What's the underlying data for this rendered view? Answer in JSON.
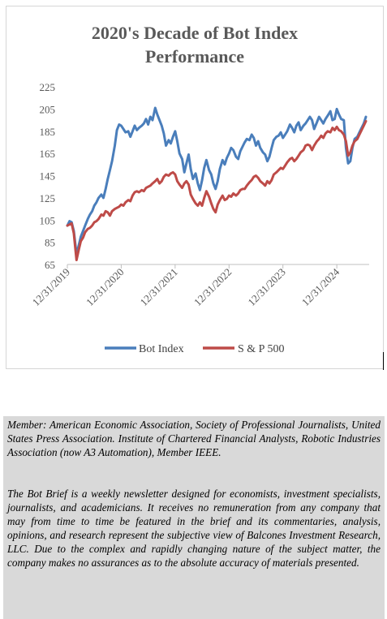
{
  "chart_data": {
    "type": "line",
    "title_lines": [
      "2020's Decade of Bot Index",
      "Performance"
    ],
    "xlabel": "",
    "ylabel": "",
    "ylim": [
      65,
      225
    ],
    "y_ticks": [
      "225",
      "205",
      "185",
      "165",
      "145",
      "125",
      "105",
      "85",
      "65"
    ],
    "x_ticks": [
      "12/31/2019",
      "12/31/2020",
      "12/31/2021",
      "12/31/2022",
      "12/31/2023",
      "12/31/2024"
    ],
    "xlim": [
      2020.0,
      2025.6
    ],
    "legend_position": "bottom",
    "series": [
      {
        "name": "Bot Index",
        "color": "#4a7ebb",
        "points": [
          [
            2020.0,
            100
          ],
          [
            2020.04,
            104
          ],
          [
            2020.08,
            103
          ],
          [
            2020.12,
            95
          ],
          [
            2020.17,
            74
          ],
          [
            2020.21,
            82
          ],
          [
            2020.25,
            90
          ],
          [
            2020.29,
            95
          ],
          [
            2020.33,
            100
          ],
          [
            2020.38,
            106
          ],
          [
            2020.42,
            110
          ],
          [
            2020.46,
            113
          ],
          [
            2020.5,
            118
          ],
          [
            2020.54,
            121
          ],
          [
            2020.58,
            125
          ],
          [
            2020.63,
            128
          ],
          [
            2020.67,
            125
          ],
          [
            2020.71,
            133
          ],
          [
            2020.75,
            142
          ],
          [
            2020.79,
            150
          ],
          [
            2020.83,
            158
          ],
          [
            2020.88,
            172
          ],
          [
            2020.92,
            186
          ],
          [
            2020.96,
            191
          ],
          [
            2021.0,
            190
          ],
          [
            2021.04,
            187
          ],
          [
            2021.08,
            184
          ],
          [
            2021.13,
            185
          ],
          [
            2021.17,
            180
          ],
          [
            2021.21,
            185
          ],
          [
            2021.25,
            190
          ],
          [
            2021.29,
            186
          ],
          [
            2021.33,
            188
          ],
          [
            2021.38,
            190
          ],
          [
            2021.42,
            192
          ],
          [
            2021.46,
            196
          ],
          [
            2021.5,
            191
          ],
          [
            2021.54,
            198
          ],
          [
            2021.58,
            195
          ],
          [
            2021.63,
            206
          ],
          [
            2021.67,
            200
          ],
          [
            2021.71,
            195
          ],
          [
            2021.75,
            190
          ],
          [
            2021.79,
            183
          ],
          [
            2021.83,
            172
          ],
          [
            2021.88,
            177
          ],
          [
            2021.92,
            174
          ],
          [
            2021.96,
            180
          ],
          [
            2022.0,
            185
          ],
          [
            2022.04,
            176
          ],
          [
            2022.08,
            165
          ],
          [
            2022.13,
            160
          ],
          [
            2022.17,
            148
          ],
          [
            2022.21,
            156
          ],
          [
            2022.25,
            164
          ],
          [
            2022.29,
            151
          ],
          [
            2022.33,
            142
          ],
          [
            2022.38,
            147
          ],
          [
            2022.42,
            138
          ],
          [
            2022.46,
            132
          ],
          [
            2022.5,
            141
          ],
          [
            2022.54,
            152
          ],
          [
            2022.58,
            159
          ],
          [
            2022.63,
            150
          ],
          [
            2022.67,
            146
          ],
          [
            2022.71,
            138
          ],
          [
            2022.75,
            133
          ],
          [
            2022.79,
            140
          ],
          [
            2022.83,
            151
          ],
          [
            2022.88,
            159
          ],
          [
            2022.92,
            155
          ],
          [
            2022.96,
            161
          ],
          [
            2023.0,
            165
          ],
          [
            2023.04,
            170
          ],
          [
            2023.08,
            168
          ],
          [
            2023.13,
            162
          ],
          [
            2023.17,
            160
          ],
          [
            2023.21,
            167
          ],
          [
            2023.25,
            171
          ],
          [
            2023.29,
            175
          ],
          [
            2023.33,
            178
          ],
          [
            2023.38,
            177
          ],
          [
            2023.42,
            182
          ],
          [
            2023.46,
            179
          ],
          [
            2023.5,
            172
          ],
          [
            2023.54,
            176
          ],
          [
            2023.58,
            170
          ],
          [
            2023.63,
            166
          ],
          [
            2023.67,
            164
          ],
          [
            2023.71,
            158
          ],
          [
            2023.75,
            162
          ],
          [
            2023.79,
            170
          ],
          [
            2023.83,
            177
          ],
          [
            2023.88,
            180
          ],
          [
            2023.92,
            181
          ],
          [
            2023.96,
            184
          ],
          [
            2024.0,
            179
          ],
          [
            2024.04,
            182
          ],
          [
            2024.08,
            185
          ],
          [
            2024.13,
            191
          ],
          [
            2024.17,
            188
          ],
          [
            2024.21,
            184
          ],
          [
            2024.25,
            190
          ],
          [
            2024.29,
            193
          ],
          [
            2024.33,
            186
          ],
          [
            2024.38,
            190
          ],
          [
            2024.42,
            192
          ],
          [
            2024.46,
            195
          ],
          [
            2024.5,
            198
          ],
          [
            2024.54,
            195
          ],
          [
            2024.58,
            187
          ],
          [
            2024.63,
            193
          ],
          [
            2024.67,
            198
          ],
          [
            2024.71,
            195
          ],
          [
            2024.75,
            192
          ],
          [
            2024.79,
            196
          ],
          [
            2024.83,
            199
          ],
          [
            2024.88,
            203
          ],
          [
            2024.92,
            195
          ],
          [
            2024.96,
            196
          ],
          [
            2025.0,
            205
          ],
          [
            2025.04,
            200
          ],
          [
            2025.08,
            196
          ],
          [
            2025.13,
            195
          ],
          [
            2025.17,
            170
          ],
          [
            2025.21,
            156
          ],
          [
            2025.25,
            158
          ],
          [
            2025.29,
            170
          ],
          [
            2025.33,
            178
          ],
          [
            2025.38,
            180
          ],
          [
            2025.42,
            184
          ],
          [
            2025.46,
            188
          ],
          [
            2025.5,
            192
          ],
          [
            2025.54,
            198
          ]
        ]
      },
      {
        "name": "S & P 500",
        "color": "#be4b48",
        "points": [
          [
            2020.0,
            100
          ],
          [
            2020.04,
            101
          ],
          [
            2020.08,
            102
          ],
          [
            2020.12,
            93
          ],
          [
            2020.17,
            69
          ],
          [
            2020.21,
            78
          ],
          [
            2020.25,
            86
          ],
          [
            2020.29,
            89
          ],
          [
            2020.33,
            94
          ],
          [
            2020.38,
            97
          ],
          [
            2020.42,
            98
          ],
          [
            2020.46,
            100
          ],
          [
            2020.5,
            103
          ],
          [
            2020.54,
            104
          ],
          [
            2020.58,
            106
          ],
          [
            2020.63,
            110
          ],
          [
            2020.67,
            109
          ],
          [
            2020.71,
            113
          ],
          [
            2020.75,
            112
          ],
          [
            2020.79,
            109
          ],
          [
            2020.83,
            113
          ],
          [
            2020.88,
            115
          ],
          [
            2020.92,
            116
          ],
          [
            2020.96,
            117
          ],
          [
            2021.0,
            119
          ],
          [
            2021.04,
            118
          ],
          [
            2021.08,
            121
          ],
          [
            2021.13,
            123
          ],
          [
            2021.17,
            122
          ],
          [
            2021.21,
            127
          ],
          [
            2021.25,
            130
          ],
          [
            2021.29,
            131
          ],
          [
            2021.33,
            130
          ],
          [
            2021.38,
            132
          ],
          [
            2021.42,
            131
          ],
          [
            2021.46,
            134
          ],
          [
            2021.5,
            135
          ],
          [
            2021.54,
            136
          ],
          [
            2021.58,
            138
          ],
          [
            2021.63,
            140
          ],
          [
            2021.67,
            142
          ],
          [
            2021.71,
            138
          ],
          [
            2021.75,
            140
          ],
          [
            2021.79,
            144
          ],
          [
            2021.83,
            146
          ],
          [
            2021.88,
            145
          ],
          [
            2021.92,
            147
          ],
          [
            2021.96,
            148
          ],
          [
            2022.0,
            146
          ],
          [
            2022.04,
            140
          ],
          [
            2022.08,
            137
          ],
          [
            2022.13,
            134
          ],
          [
            2022.17,
            138
          ],
          [
            2022.21,
            140
          ],
          [
            2022.25,
            137
          ],
          [
            2022.29,
            128
          ],
          [
            2022.33,
            124
          ],
          [
            2022.38,
            120
          ],
          [
            2022.42,
            118
          ],
          [
            2022.46,
            121
          ],
          [
            2022.5,
            118
          ],
          [
            2022.54,
            125
          ],
          [
            2022.58,
            131
          ],
          [
            2022.63,
            126
          ],
          [
            2022.67,
            120
          ],
          [
            2022.71,
            115
          ],
          [
            2022.75,
            112
          ],
          [
            2022.79,
            119
          ],
          [
            2022.83,
            123
          ],
          [
            2022.88,
            127
          ],
          [
            2022.92,
            123
          ],
          [
            2022.96,
            124
          ],
          [
            2023.0,
            127
          ],
          [
            2023.04,
            126
          ],
          [
            2023.08,
            129
          ],
          [
            2023.13,
            127
          ],
          [
            2023.17,
            129
          ],
          [
            2023.21,
            132
          ],
          [
            2023.25,
            133
          ],
          [
            2023.29,
            133
          ],
          [
            2023.33,
            136
          ],
          [
            2023.38,
            139
          ],
          [
            2023.42,
            141
          ],
          [
            2023.46,
            144
          ],
          [
            2023.5,
            145
          ],
          [
            2023.54,
            143
          ],
          [
            2023.58,
            140
          ],
          [
            2023.63,
            138
          ],
          [
            2023.67,
            136
          ],
          [
            2023.71,
            140
          ],
          [
            2023.75,
            138
          ],
          [
            2023.79,
            141
          ],
          [
            2023.83,
            146
          ],
          [
            2023.88,
            148
          ],
          [
            2023.92,
            150
          ],
          [
            2023.96,
            152
          ],
          [
            2024.0,
            151
          ],
          [
            2024.04,
            154
          ],
          [
            2024.08,
            157
          ],
          [
            2024.13,
            160
          ],
          [
            2024.17,
            161
          ],
          [
            2024.21,
            158
          ],
          [
            2024.25,
            160
          ],
          [
            2024.29,
            163
          ],
          [
            2024.33,
            166
          ],
          [
            2024.38,
            168
          ],
          [
            2024.42,
            172
          ],
          [
            2024.46,
            173
          ],
          [
            2024.5,
            172
          ],
          [
            2024.54,
            168
          ],
          [
            2024.58,
            172
          ],
          [
            2024.63,
            176
          ],
          [
            2024.67,
            178
          ],
          [
            2024.71,
            181
          ],
          [
            2024.75,
            179
          ],
          [
            2024.79,
            183
          ],
          [
            2024.83,
            185
          ],
          [
            2024.88,
            184
          ],
          [
            2024.92,
            188
          ],
          [
            2024.96,
            186
          ],
          [
            2025.0,
            189
          ],
          [
            2025.04,
            186
          ],
          [
            2025.08,
            185
          ],
          [
            2025.13,
            182
          ],
          [
            2025.17,
            176
          ],
          [
            2025.21,
            163
          ],
          [
            2025.25,
            166
          ],
          [
            2025.29,
            172
          ],
          [
            2025.33,
            176
          ],
          [
            2025.38,
            178
          ],
          [
            2025.42,
            182
          ],
          [
            2025.46,
            186
          ],
          [
            2025.5,
            190
          ],
          [
            2025.54,
            194
          ]
        ]
      }
    ]
  },
  "disclaimer": {
    "member": "Member: American Economic Association, Society of Professional Journalists, United States Press Association. Institute of Chartered Financial Analysts, Robotic Industries Association (now A3 Automation), Member IEEE.",
    "about": "The Bot Brief is a weekly newsletter designed for economists, investment specialists, journalists, and academicians. It receives no remuneration from any company that may from time to time be featured in the brief and its commentaries, analysis, opinions, and research represent the subjective view of Balcones Investment Research, LLC. Due to the complex and rapidly changing nature of the subject matter, the company makes no assurances as to the absolute accuracy of materials presented."
  }
}
